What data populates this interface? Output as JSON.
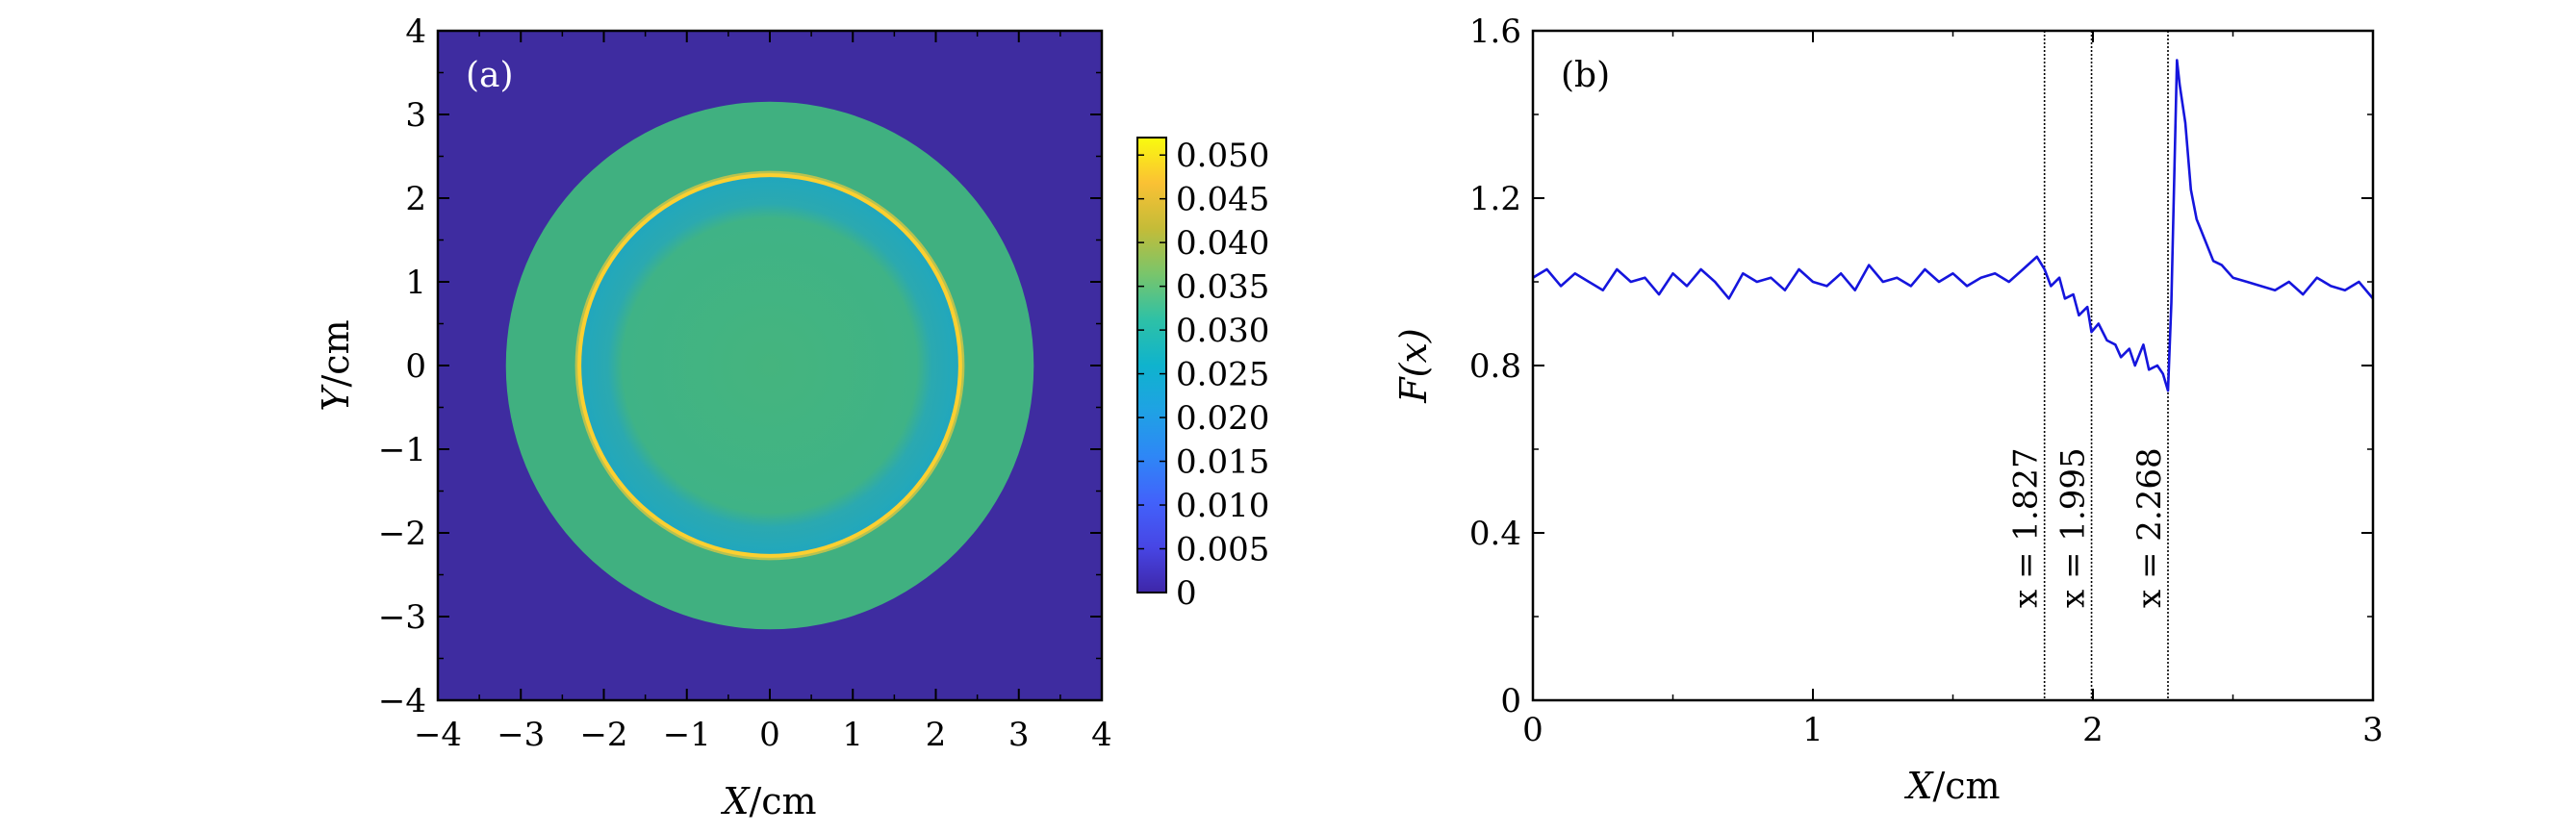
{
  "figure": {
    "panel_a_label": "(a)",
    "panel_b_label": "(b)"
  },
  "colors": {
    "background": "#3e2ca0",
    "outer_ring": "#40b080",
    "inner_ring": "#27aab4",
    "center": "#43b480",
    "edge_peak": "#fcd030",
    "line_b": "#1515dd"
  },
  "chart_data": [
    {
      "type": "heatmap",
      "panel": "(a)",
      "xlabel_var": "X",
      "xlabel_unit": "/cm",
      "ylabel_var": "Y",
      "ylabel_unit": "/cm",
      "xlim": [
        -4,
        4
      ],
      "ylim": [
        -4,
        4
      ],
      "xticks": [
        "−4",
        "−3",
        "−2",
        "−1",
        "0",
        "1",
        "2",
        "3",
        "4"
      ],
      "yticks": [
        "−4",
        "−3",
        "−2",
        "−1",
        "0",
        "1",
        "2",
        "3",
        "4"
      ],
      "colorbar": {
        "range": [
          0,
          0.052
        ],
        "ticks": [
          "0",
          "0.005",
          "0.010",
          "0.015",
          "0.020",
          "0.025",
          "0.030",
          "0.035",
          "0.040",
          "0.045",
          "0.050"
        ],
        "tick_values": [
          0,
          0.005,
          0.01,
          0.015,
          0.02,
          0.025,
          0.03,
          0.035,
          0.04,
          0.045,
          0.05
        ]
      },
      "regions": [
        {
          "region": "background",
          "value": 0.0
        },
        {
          "region": "outer ring",
          "r_outer": 3.18,
          "value": 0.032
        },
        {
          "region": "inner ring",
          "r_outer": 2.3,
          "r_inner": 1.9,
          "value": 0.027
        },
        {
          "region": "center",
          "r_outer": 1.9,
          "value": 0.031
        },
        {
          "region": "edge peak",
          "r": 2.3,
          "value": 0.048
        }
      ]
    },
    {
      "type": "line",
      "panel": "(b)",
      "xlabel_var": "X",
      "xlabel_unit": "/cm",
      "ylabel_text": "F(x)",
      "xlim": [
        0,
        3
      ],
      "ylim": [
        0,
        1.6
      ],
      "xticks": [
        "0",
        "1",
        "2",
        "3"
      ],
      "yticks": [
        "0",
        "0.4",
        "0.8",
        "1.2",
        "1.6"
      ],
      "vlines": [
        {
          "x": 1.827,
          "label": "x = 1.827"
        },
        {
          "x": 1.995,
          "label": "x = 1.995"
        },
        {
          "x": 2.268,
          "label": "x = 2.268"
        }
      ],
      "series": [
        {
          "x": [
            0,
            0.05,
            0.1,
            0.15,
            0.2,
            0.25,
            0.3,
            0.35,
            0.4,
            0.45,
            0.5,
            0.55,
            0.6,
            0.65,
            0.7,
            0.75,
            0.8,
            0.85,
            0.9,
            0.95,
            1.0,
            1.05,
            1.1,
            1.15,
            1.2,
            1.25,
            1.3,
            1.35,
            1.4,
            1.45,
            1.5,
            1.55,
            1.6,
            1.65,
            1.7,
            1.75,
            1.8,
            1.827,
            1.85,
            1.88,
            1.9,
            1.93,
            1.95,
            1.98,
            1.995,
            2.02,
            2.05,
            2.08,
            2.1,
            2.13,
            2.15,
            2.18,
            2.2,
            2.23,
            2.25,
            2.268,
            2.28,
            2.3,
            2.31,
            2.33,
            2.35,
            2.37,
            2.4,
            2.43,
            2.46,
            2.5,
            2.55,
            2.6,
            2.65,
            2.7,
            2.75,
            2.8,
            2.85,
            2.9,
            2.95,
            3.0
          ],
          "y": [
            1.01,
            1.03,
            0.99,
            1.02,
            1.0,
            0.98,
            1.03,
            1.0,
            1.01,
            0.97,
            1.02,
            0.99,
            1.03,
            1.0,
            0.96,
            1.02,
            1.0,
            1.01,
            0.98,
            1.03,
            1.0,
            0.99,
            1.02,
            0.98,
            1.04,
            1.0,
            1.01,
            0.99,
            1.03,
            1.0,
            1.02,
            0.99,
            1.01,
            1.02,
            1.0,
            1.03,
            1.06,
            1.03,
            0.99,
            1.01,
            0.96,
            0.97,
            0.92,
            0.94,
            0.88,
            0.9,
            0.86,
            0.85,
            0.82,
            0.84,
            0.8,
            0.85,
            0.79,
            0.8,
            0.78,
            0.74,
            0.95,
            1.53,
            1.47,
            1.38,
            1.22,
            1.15,
            1.1,
            1.05,
            1.04,
            1.01,
            1.0,
            0.99,
            0.98,
            1.0,
            0.97,
            1.01,
            0.99,
            0.98,
            1.0,
            0.96
          ]
        }
      ]
    }
  ]
}
